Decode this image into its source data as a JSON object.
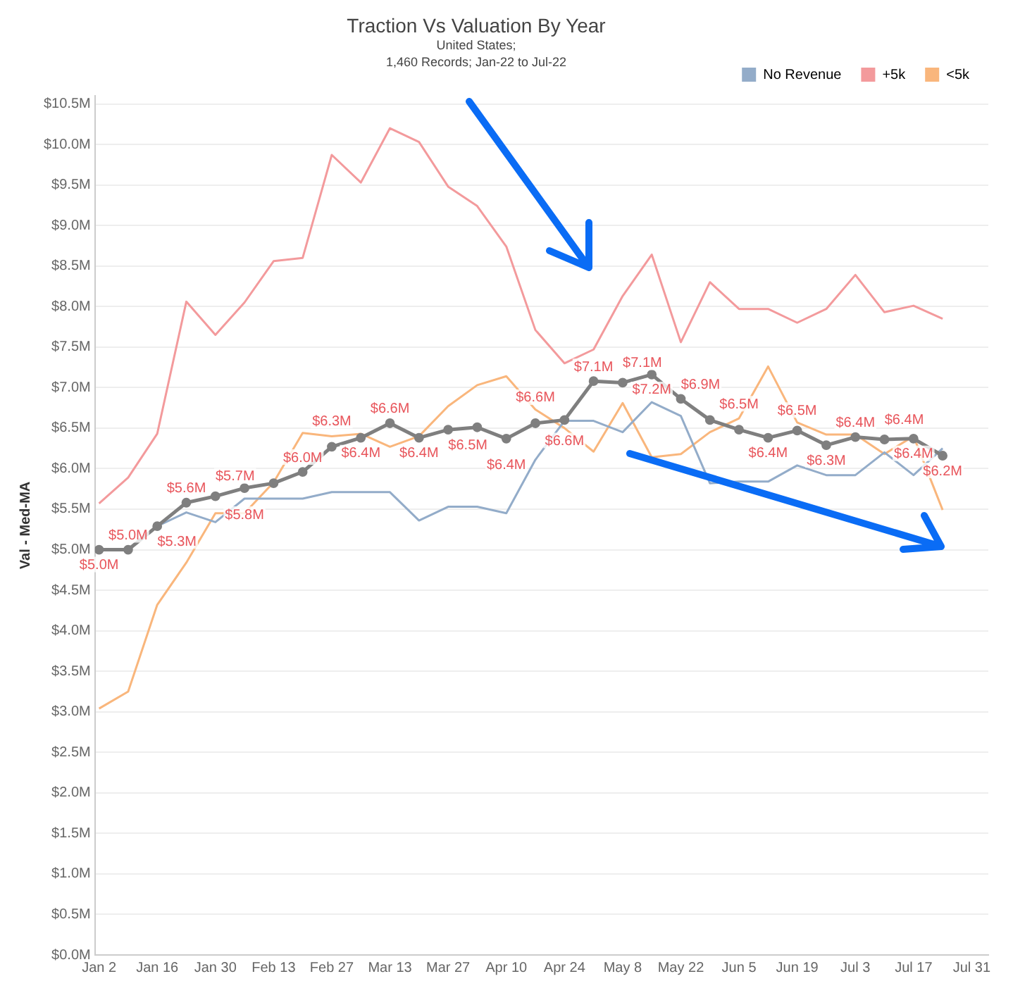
{
  "chart_data": {
    "type": "line",
    "title": "Traction Vs  Valuation By Year",
    "subtitle": "United States;\n1,460 Records;  Jan-22 to Jul-22",
    "ylabel": "Val - Med-MA",
    "x": [
      "--01-02",
      "--01-09",
      "--01-16",
      "--01-23",
      "--01-30",
      "--02-06",
      "--02-13",
      "--02-20",
      "--02-27",
      "--03-06",
      "--03-13",
      "--03-20",
      "--03-27",
      "--04-03",
      "--04-10",
      "--04-17",
      "--04-24",
      "--05-01",
      "--05-08",
      "--05-15",
      "--05-22",
      "--05-29",
      "--06-05",
      "--06-12",
      "--06-19",
      "--06-26",
      "--07-03",
      "--07-10",
      "--07-17",
      "--07-24"
    ],
    "series": [
      {
        "name": "No Revenue",
        "color": "#93acc9",
        "marker": "none",
        "values": [
          null,
          null,
          5.29,
          5.46,
          5.34,
          5.63,
          5.63,
          5.63,
          5.71,
          5.71,
          5.71,
          5.36,
          5.53,
          5.53,
          5.45,
          6.11,
          6.59,
          6.59,
          6.45,
          6.82,
          6.65,
          5.82,
          5.84,
          5.84,
          6.04,
          5.92,
          5.92,
          6.2,
          5.92,
          6.25
        ]
      },
      {
        "name": "+5k",
        "color": "#f39a9c",
        "marker": "none",
        "values": [
          5.57,
          5.89,
          6.43,
          8.06,
          7.65,
          8.05,
          8.56,
          8.6,
          9.87,
          9.53,
          10.2,
          10.03,
          9.48,
          9.24,
          8.74,
          7.71,
          7.3,
          7.47,
          8.13,
          8.64,
          7.56,
          8.3,
          7.97,
          7.97,
          7.8,
          7.97,
          8.39,
          7.93,
          8.01,
          7.85
        ]
      },
      {
        "name": "<5k",
        "color": "#f9b67c",
        "marker": "none",
        "values": [
          3.04,
          3.25,
          4.32,
          4.84,
          5.45,
          5.45,
          5.83,
          6.44,
          6.4,
          6.43,
          6.27,
          6.4,
          6.77,
          7.03,
          7.14,
          6.73,
          6.5,
          6.21,
          6.81,
          6.14,
          6.18,
          6.45,
          6.62,
          7.26,
          6.57,
          6.42,
          6.42,
          6.18,
          6.4,
          5.49
        ]
      },
      {
        "color": "#7f7f7f",
        "marker": "circle",
        "values": [
          5.0,
          5.0,
          5.29,
          5.58,
          5.66,
          5.76,
          5.82,
          5.96,
          6.27,
          6.38,
          6.56,
          6.38,
          6.48,
          6.51,
          6.37,
          6.56,
          6.6,
          7.08,
          7.06,
          7.16,
          6.86,
          6.6,
          6.48,
          6.38,
          6.47,
          6.29,
          6.39,
          6.36,
          6.37,
          6.16
        ],
        "value_labels": [
          "$5.0M",
          "$5.0M",
          "$5.3M",
          "$5.6M",
          "$5.7M",
          "$5.8M",
          null,
          "$6.0M",
          "$6.3M",
          "$6.4M",
          "$6.6M",
          "$6.4M",
          "$6.5M",
          null,
          "$6.4M",
          "$6.6M",
          "$6.6M",
          "$7.1M",
          "$7.1M",
          "$7.2M",
          "$6.9M",
          null,
          "$6.5M",
          "$6.4M",
          "$6.5M",
          "$6.3M",
          "$6.4M",
          "$6.4M",
          "$6.4M",
          "$6.2M"
        ]
      }
    ],
    "xlim": [
      "--01-01",
      "--08-04"
    ],
    "xticks": [
      {
        "value": "--01-02",
        "label": "Jan 2"
      },
      {
        "value": "--01-16",
        "label": "Jan 16"
      },
      {
        "value": "--01-30",
        "label": "Jan 30"
      },
      {
        "value": "--02-13",
        "label": "Feb 13"
      },
      {
        "value": "--02-27",
        "label": "Feb 27"
      },
      {
        "value": "--03-13",
        "label": "Mar 13"
      },
      {
        "value": "--03-27",
        "label": "Mar 27"
      },
      {
        "value": "--04-10",
        "label": "Apr 10"
      },
      {
        "value": "--04-24",
        "label": "Apr 24"
      },
      {
        "value": "--05-08",
        "label": "May 8"
      },
      {
        "value": "--05-22",
        "label": "May 22"
      },
      {
        "value": "--06-05",
        "label": "Jun 5"
      },
      {
        "value": "--06-19",
        "label": "Jun 19"
      },
      {
        "value": "--07-03",
        "label": "Jul 3"
      },
      {
        "value": "--07-17",
        "label": "Jul 17"
      },
      {
        "value": "--07-31",
        "label": "Jul 31"
      }
    ],
    "ylim": [
      0,
      10.6
    ],
    "yticks": [
      {
        "value": 0,
        "label": "$0.0M"
      },
      {
        "value": 0.5,
        "label": "$0.5M"
      },
      {
        "value": 1,
        "label": "$1.0M"
      },
      {
        "value": 1.5,
        "label": "$1.5M"
      },
      {
        "value": 2,
        "label": "$2.0M"
      },
      {
        "value": 2.5,
        "label": "$2.5M"
      },
      {
        "value": 3,
        "label": "$3.0M"
      },
      {
        "value": 3.5,
        "label": "$3.5M"
      },
      {
        "value": 4,
        "label": "$4.0M"
      },
      {
        "value": 4.5,
        "label": "$4.5M"
      },
      {
        "value": 5,
        "label": "$5.0M"
      },
      {
        "value": 5.5,
        "label": "$5.5M"
      },
      {
        "value": 6,
        "label": "$6.0M"
      },
      {
        "value": 6.5,
        "label": "$6.5M"
      },
      {
        "value": 7,
        "label": "$7.0M"
      },
      {
        "value": 7.5,
        "label": "$7.5M"
      },
      {
        "value": 8,
        "label": "$8.0M"
      },
      {
        "value": 8.5,
        "label": "$8.5M"
      },
      {
        "value": 9,
        "label": "$9.0M"
      },
      {
        "value": 9.5,
        "label": "$9.5M"
      },
      {
        "value": 10,
        "label": "$10.0M"
      },
      {
        "value": 10.5,
        "label": "$10.5M"
      }
    ],
    "grid": "y",
    "legend": "top right"
  }
}
